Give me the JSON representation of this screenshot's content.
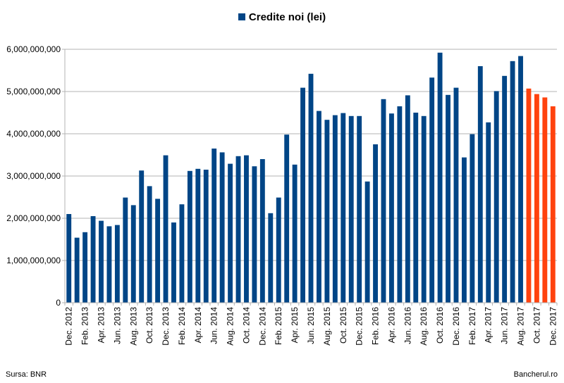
{
  "chart_data": {
    "type": "bar",
    "legend": {
      "label": "Credite noi (lei)",
      "placement": "top-center"
    },
    "grid": true,
    "ylim": [
      0,
      6000000000
    ],
    "yticks": [
      0,
      1000000000,
      2000000000,
      3000000000,
      4000000000,
      5000000000,
      6000000000
    ],
    "ytick_labels": [
      "0",
      "1,000,000,000",
      "2,000,000,000",
      "3,000,000,000",
      "4,000,000,000",
      "5,000,000,000",
      "6,000,000,000"
    ],
    "xtick_labels": [
      "Dec. 2012",
      "Feb. 2013",
      "Apr. 2013",
      "Jun. 2013",
      "Aug. 2013",
      "Oct. 2013",
      "Dec. 2013",
      "Feb. 2014",
      "Apr. 2014",
      "Jun. 2014",
      "Aug. 2014",
      "Oct. 2014",
      "Dec. 2014",
      "Feb. 2015",
      "Apr. 2015",
      "Jun. 2015",
      "Aug. 2015",
      "Oct. 2015",
      "Dec. 2015",
      "Feb. 2016",
      "Apr. 2016",
      "Jun. 2016",
      "Aug. 2016",
      "Oct. 2016",
      "Dec. 2016",
      "Feb. 2017",
      "Apr. 2017",
      "Jun. 2017",
      "Aug. 2017",
      "Oct. 2017",
      "Dec. 2017"
    ],
    "colors": {
      "default": "#004586",
      "highlight": "#ff420e",
      "grid": "#b3b3b3"
    },
    "highlight_from_index": 57,
    "values": [
      2100000000,
      1540000000,
      1670000000,
      2050000000,
      1940000000,
      1810000000,
      1840000000,
      2490000000,
      2310000000,
      3130000000,
      2760000000,
      2460000000,
      3490000000,
      1900000000,
      2330000000,
      3120000000,
      3170000000,
      3150000000,
      3650000000,
      3560000000,
      3290000000,
      3470000000,
      3490000000,
      3230000000,
      3400000000,
      2120000000,
      2490000000,
      3980000000,
      3270000000,
      5090000000,
      5420000000,
      4540000000,
      4330000000,
      4440000000,
      4490000000,
      4420000000,
      4420000000,
      2870000000,
      3750000000,
      4820000000,
      4480000000,
      4650000000,
      4910000000,
      4500000000,
      4420000000,
      5330000000,
      5920000000,
      4920000000,
      5090000000,
      3440000000,
      3990000000,
      5600000000,
      4270000000,
      5010000000,
      5370000000,
      5720000000,
      5840000000,
      5070000000,
      4940000000,
      4860000000,
      4650000000
    ]
  },
  "footer": {
    "source": "Sursa: BNR",
    "brand": "Bancherul.ro"
  }
}
